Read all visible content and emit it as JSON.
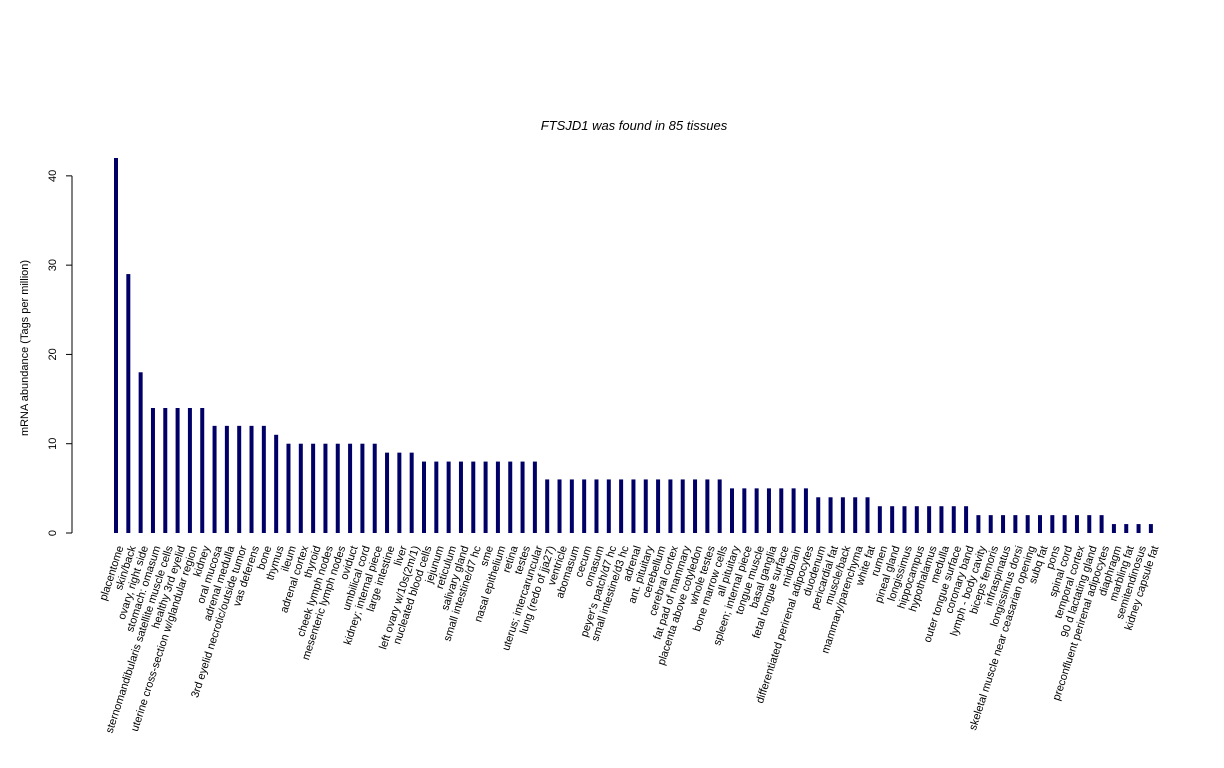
{
  "chart_data": {
    "type": "bar",
    "title": "FTSJD1  was found in  85  tissues",
    "y_label": "mRNA abundance (Tags per million)",
    "categories": [
      "placentome",
      "skin/back",
      "ovary, right side",
      "stomach: omasum",
      "sternomandibularis satellite muscle cells",
      "healthy 3rd eyelid",
      "uterine cross-section w/glandular region",
      "kidney",
      "oral mucosa",
      "adrenal medulla",
      "3rd eyelid necrotic/outside tumor",
      "vas deferens",
      "bone",
      "thymus",
      "ileum",
      "adrenal cortex",
      "thyroid",
      "cheek lymph nodes",
      "mesenteric lymph nodes",
      "oviduct",
      "umbilical cord",
      "kidney; internal piece",
      "large intestine",
      "liver",
      "left ovary w/10s(2m/1)",
      "nucleated blood cells",
      "jejunum",
      "reticulum",
      "salivary gland",
      "small intestine/d7 hc",
      "sme",
      "nasal epithelium",
      "retina",
      "testes",
      "uterus; intercaruncular",
      "lung (redo of jja27)",
      "ventricle",
      "abomasum",
      "cecum",
      "omasum",
      "peyer's patch/d7 hc",
      "small intestine/d3 hc",
      "adrenal",
      "ant. pituitary",
      "cerebellum",
      "cerebral cortex",
      "fat pad of mammary",
      "placenta above cotyledon",
      "whole testes",
      "bone marrow cells",
      "all pituitary",
      "spleen; internal piece",
      "tongue muscle",
      "basal ganglia",
      "fetal tongue surface",
      "midbrain",
      "differentiated perirenal adipocytes",
      "duodenum",
      "pericardial fat",
      "muscle/back",
      "mammary/parenchyma",
      "white fat",
      "rumen",
      "pineal gland",
      "longissimus",
      "hippocampus",
      "hypothalamus",
      "medulla",
      "outer tongue surface",
      "coronary band",
      "lymph - body cavity",
      "biceps femoris",
      "infraspinatus",
      "longissimus dorsi",
      "skeletal muscle near ceasarian opening",
      "subq fat",
      "pons",
      "spinal cord",
      "temporal cortex",
      "90 d lactating gland",
      "preconfluent perirenal adipocytes",
      "diaphragm",
      "marbling fat",
      "semitendinosus",
      "kidney capsule fat"
    ],
    "values": [
      42,
      29,
      18,
      14,
      14,
      14,
      14,
      14,
      12,
      12,
      12,
      12,
      12,
      11,
      10,
      10,
      10,
      10,
      10,
      10,
      10,
      10,
      9,
      9,
      9,
      8,
      8,
      8,
      8,
      8,
      8,
      8,
      8,
      8,
      8,
      6,
      6,
      6,
      6,
      6,
      6,
      6,
      6,
      6,
      6,
      6,
      6,
      6,
      6,
      6,
      5,
      5,
      5,
      5,
      5,
      5,
      5,
      4,
      4,
      4,
      4,
      4,
      3,
      3,
      3,
      3,
      3,
      3,
      3,
      3,
      2,
      2,
      2,
      2,
      2,
      2,
      2,
      2,
      2,
      2,
      2,
      1,
      1,
      1,
      1
    ],
    "color": "#000066",
    "ylim": [
      0,
      42
    ],
    "yticks": [
      0,
      10,
      20,
      30,
      40
    ]
  }
}
